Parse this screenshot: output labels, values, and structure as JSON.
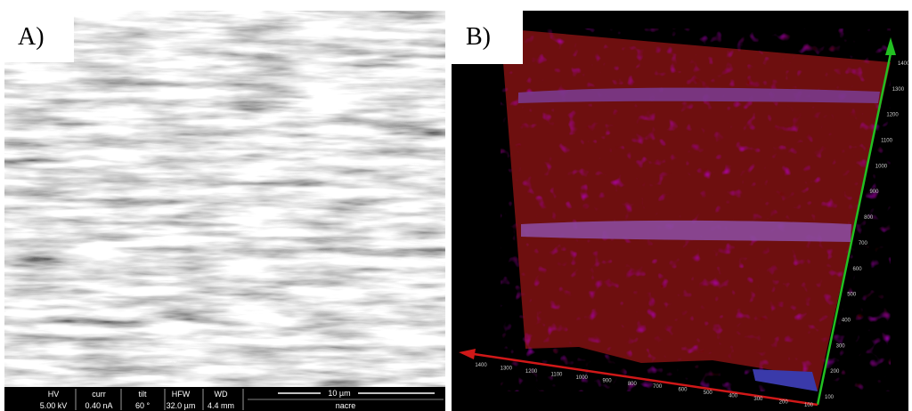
{
  "panels": [
    {
      "label": "A)",
      "databar": [
        {
          "name": "HV",
          "value": "5.00 kV"
        },
        {
          "name": "curr",
          "value": "0.40 nA"
        },
        {
          "name": "tilt",
          "value": "60 °"
        },
        {
          "name": "HFW",
          "value": "32.0 µm"
        },
        {
          "name": "WD",
          "value": "4.4 mm"
        }
      ],
      "scale_bar": "10 µm",
      "sample": "nacre"
    },
    {
      "label": "B)",
      "vertical_axis_ticks": [
        100,
        200,
        300,
        400,
        500,
        600,
        700,
        800,
        900,
        1000,
        1100,
        1200,
        1300,
        1400
      ],
      "horizontal_axis_ticks": [
        1400,
        1300,
        1200,
        1100,
        1000,
        900,
        800,
        700,
        600,
        500,
        400,
        300,
        200,
        100
      ]
    }
  ]
}
